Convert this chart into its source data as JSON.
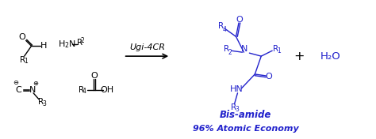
{
  "bg_color": "#ffffff",
  "black": "#000000",
  "blue": "#2222cc",
  "arrow_label": "Ugi-4CR",
  "bis_amide_label": "Bis-amide",
  "economy_label": "96% Atomic Economy",
  "water_label": "H₂O",
  "figsize": [
    4.74,
    1.76
  ],
  "dpi": 100
}
